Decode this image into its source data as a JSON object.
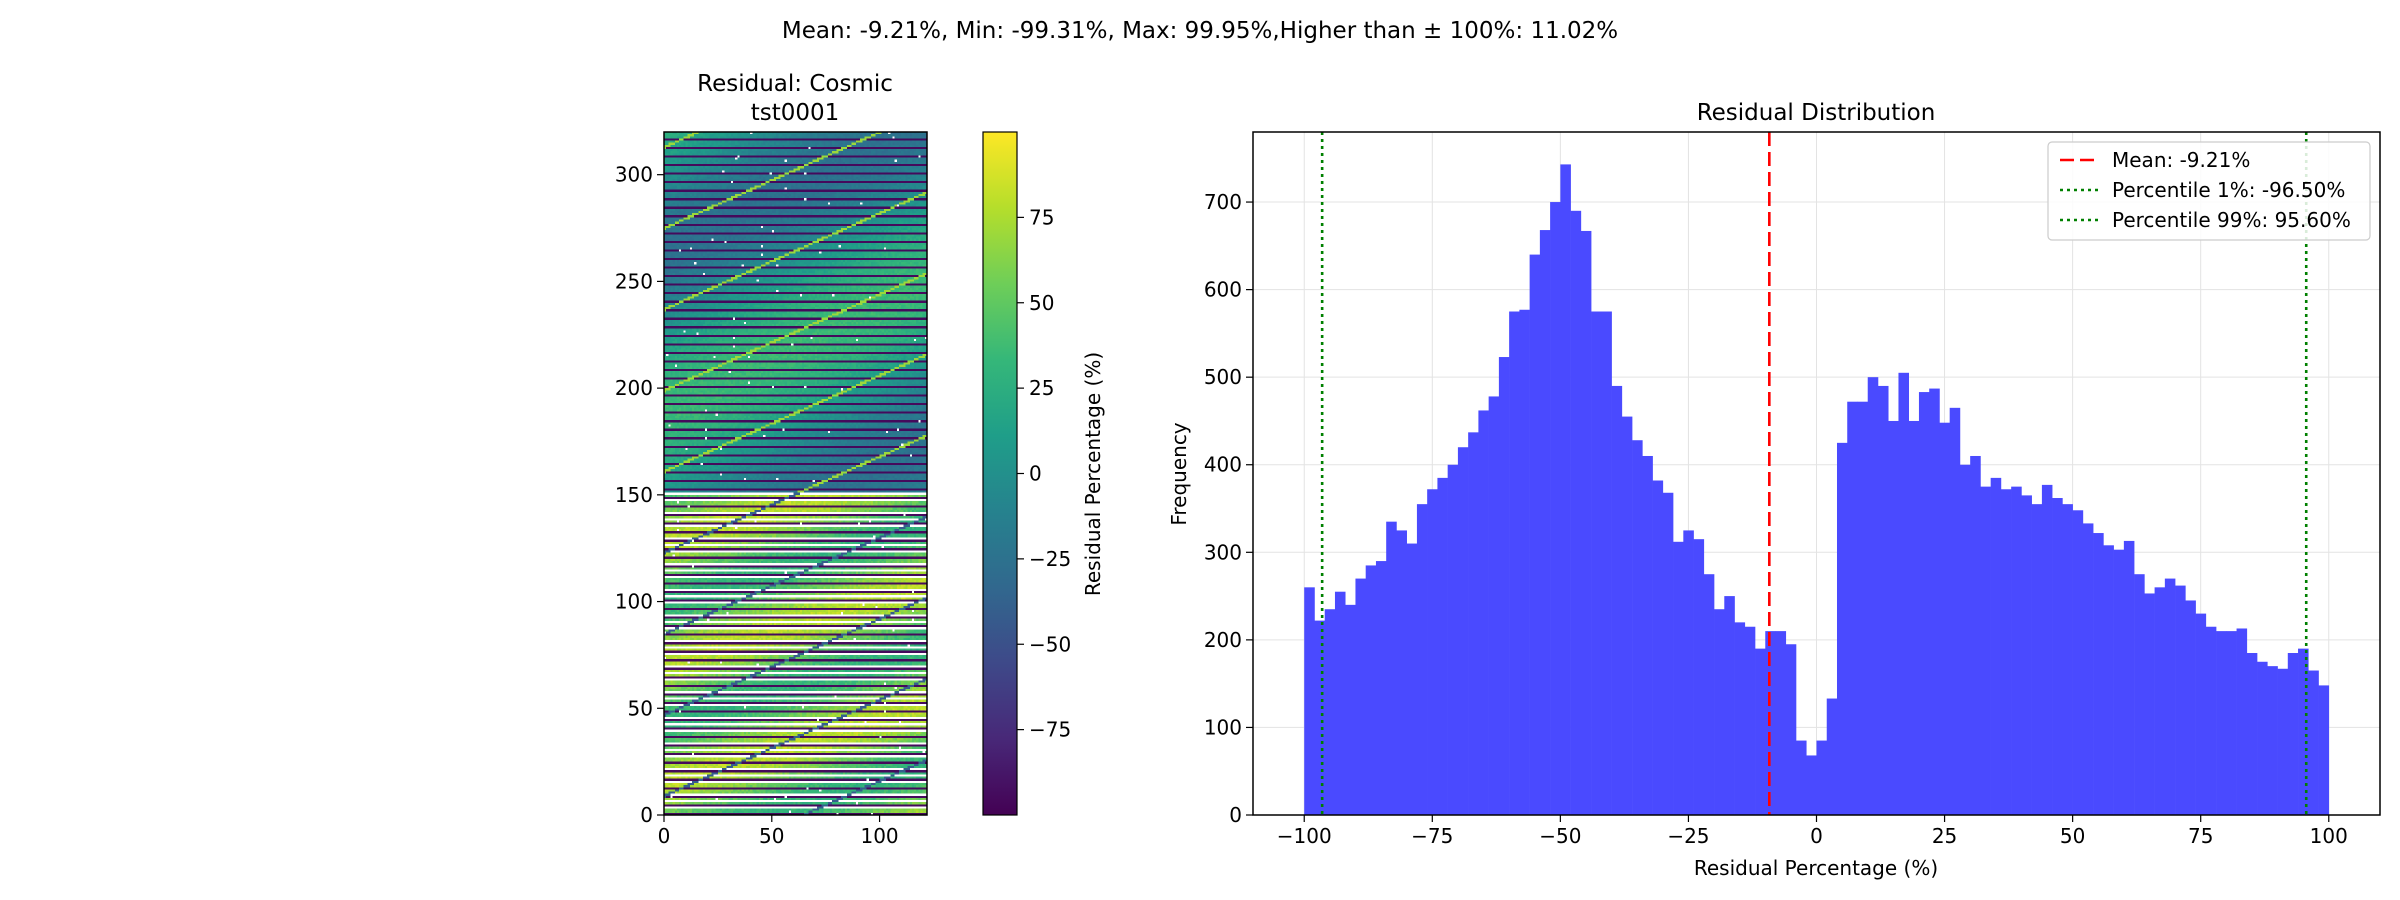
{
  "suptitle": "Mean: -9.21%, Min: -99.31%, Max: 99.95%,Higher than ± 100%: 11.02%",
  "chart_data": [
    {
      "type": "heatmap",
      "title_line1": "Residual: Cosmic",
      "title_line2": "tst0001",
      "xlim": [
        0,
        122
      ],
      "ylim": [
        0,
        320
      ],
      "xticks": [
        0,
        50,
        100
      ],
      "yticks": [
        0,
        50,
        100,
        150,
        200,
        250,
        300
      ],
      "colorbar": {
        "label": "Residual Percentage (%)",
        "range": [
          -100,
          100
        ],
        "ticks": [
          -75,
          -50,
          -25,
          0,
          25,
          50,
          75
        ],
        "tick_labels": [
          "−75",
          "−50",
          "−25",
          "0",
          "25",
          "50",
          "75"
        ],
        "colormap": [
          "#440154",
          "#482878",
          "#3e4989",
          "#31688e",
          "#26828e",
          "#1f9e89",
          "#35b779",
          "#6ece58",
          "#b5de2b",
          "#fde725"
        ]
      },
      "overflow_color": "#ffffff"
    },
    {
      "type": "bar",
      "title": "Residual Distribution",
      "xlabel": "Residual Percentage (%)",
      "ylabel": "Frequency",
      "xlim": [
        -110,
        110
      ],
      "ylim": [
        0,
        780
      ],
      "xticks": [
        -100,
        -75,
        -50,
        -25,
        0,
        25,
        50,
        75,
        100
      ],
      "xtick_labels": [
        "−100",
        "−75",
        "−50",
        "−25",
        "0",
        "25",
        "50",
        "75",
        "100"
      ],
      "yticks": [
        0,
        100,
        200,
        300,
        400,
        500,
        600,
        700
      ],
      "grid": true,
      "bin_start": -100,
      "bin_width": 2,
      "bar_color": "#4a4aff",
      "values": [
        260,
        222,
        235,
        255,
        240,
        270,
        285,
        290,
        335,
        325,
        310,
        355,
        372,
        385,
        400,
        420,
        437,
        462,
        478,
        523,
        575,
        577,
        640,
        668,
        700,
        743,
        690,
        667,
        575,
        575,
        490,
        455,
        428,
        410,
        382,
        368,
        312,
        325,
        315,
        275,
        235,
        250,
        220,
        215,
        190,
        210,
        210,
        195,
        85,
        68,
        85,
        133,
        425,
        472,
        472,
        500,
        490,
        450,
        505,
        450,
        483,
        487,
        448,
        465,
        400,
        410,
        375,
        385,
        372,
        375,
        365,
        355,
        377,
        362,
        355,
        348,
        333,
        322,
        308,
        303,
        313,
        275,
        253,
        260,
        270,
        262,
        245,
        230,
        215,
        210,
        210,
        213,
        185,
        175,
        170,
        167,
        185,
        190,
        165,
        148
      ],
      "mean_line": {
        "x": -9.21,
        "label": "Mean: -9.21%",
        "color": "#ff0000"
      },
      "p1_line": {
        "x": -96.5,
        "label": "Percentile 1%: -96.50%",
        "color": "#008000"
      },
      "p99_line": {
        "x": 95.6,
        "label": "Percentile 99%: 95.60%",
        "color": "#008000"
      },
      "legend_position": "top-right"
    }
  ]
}
